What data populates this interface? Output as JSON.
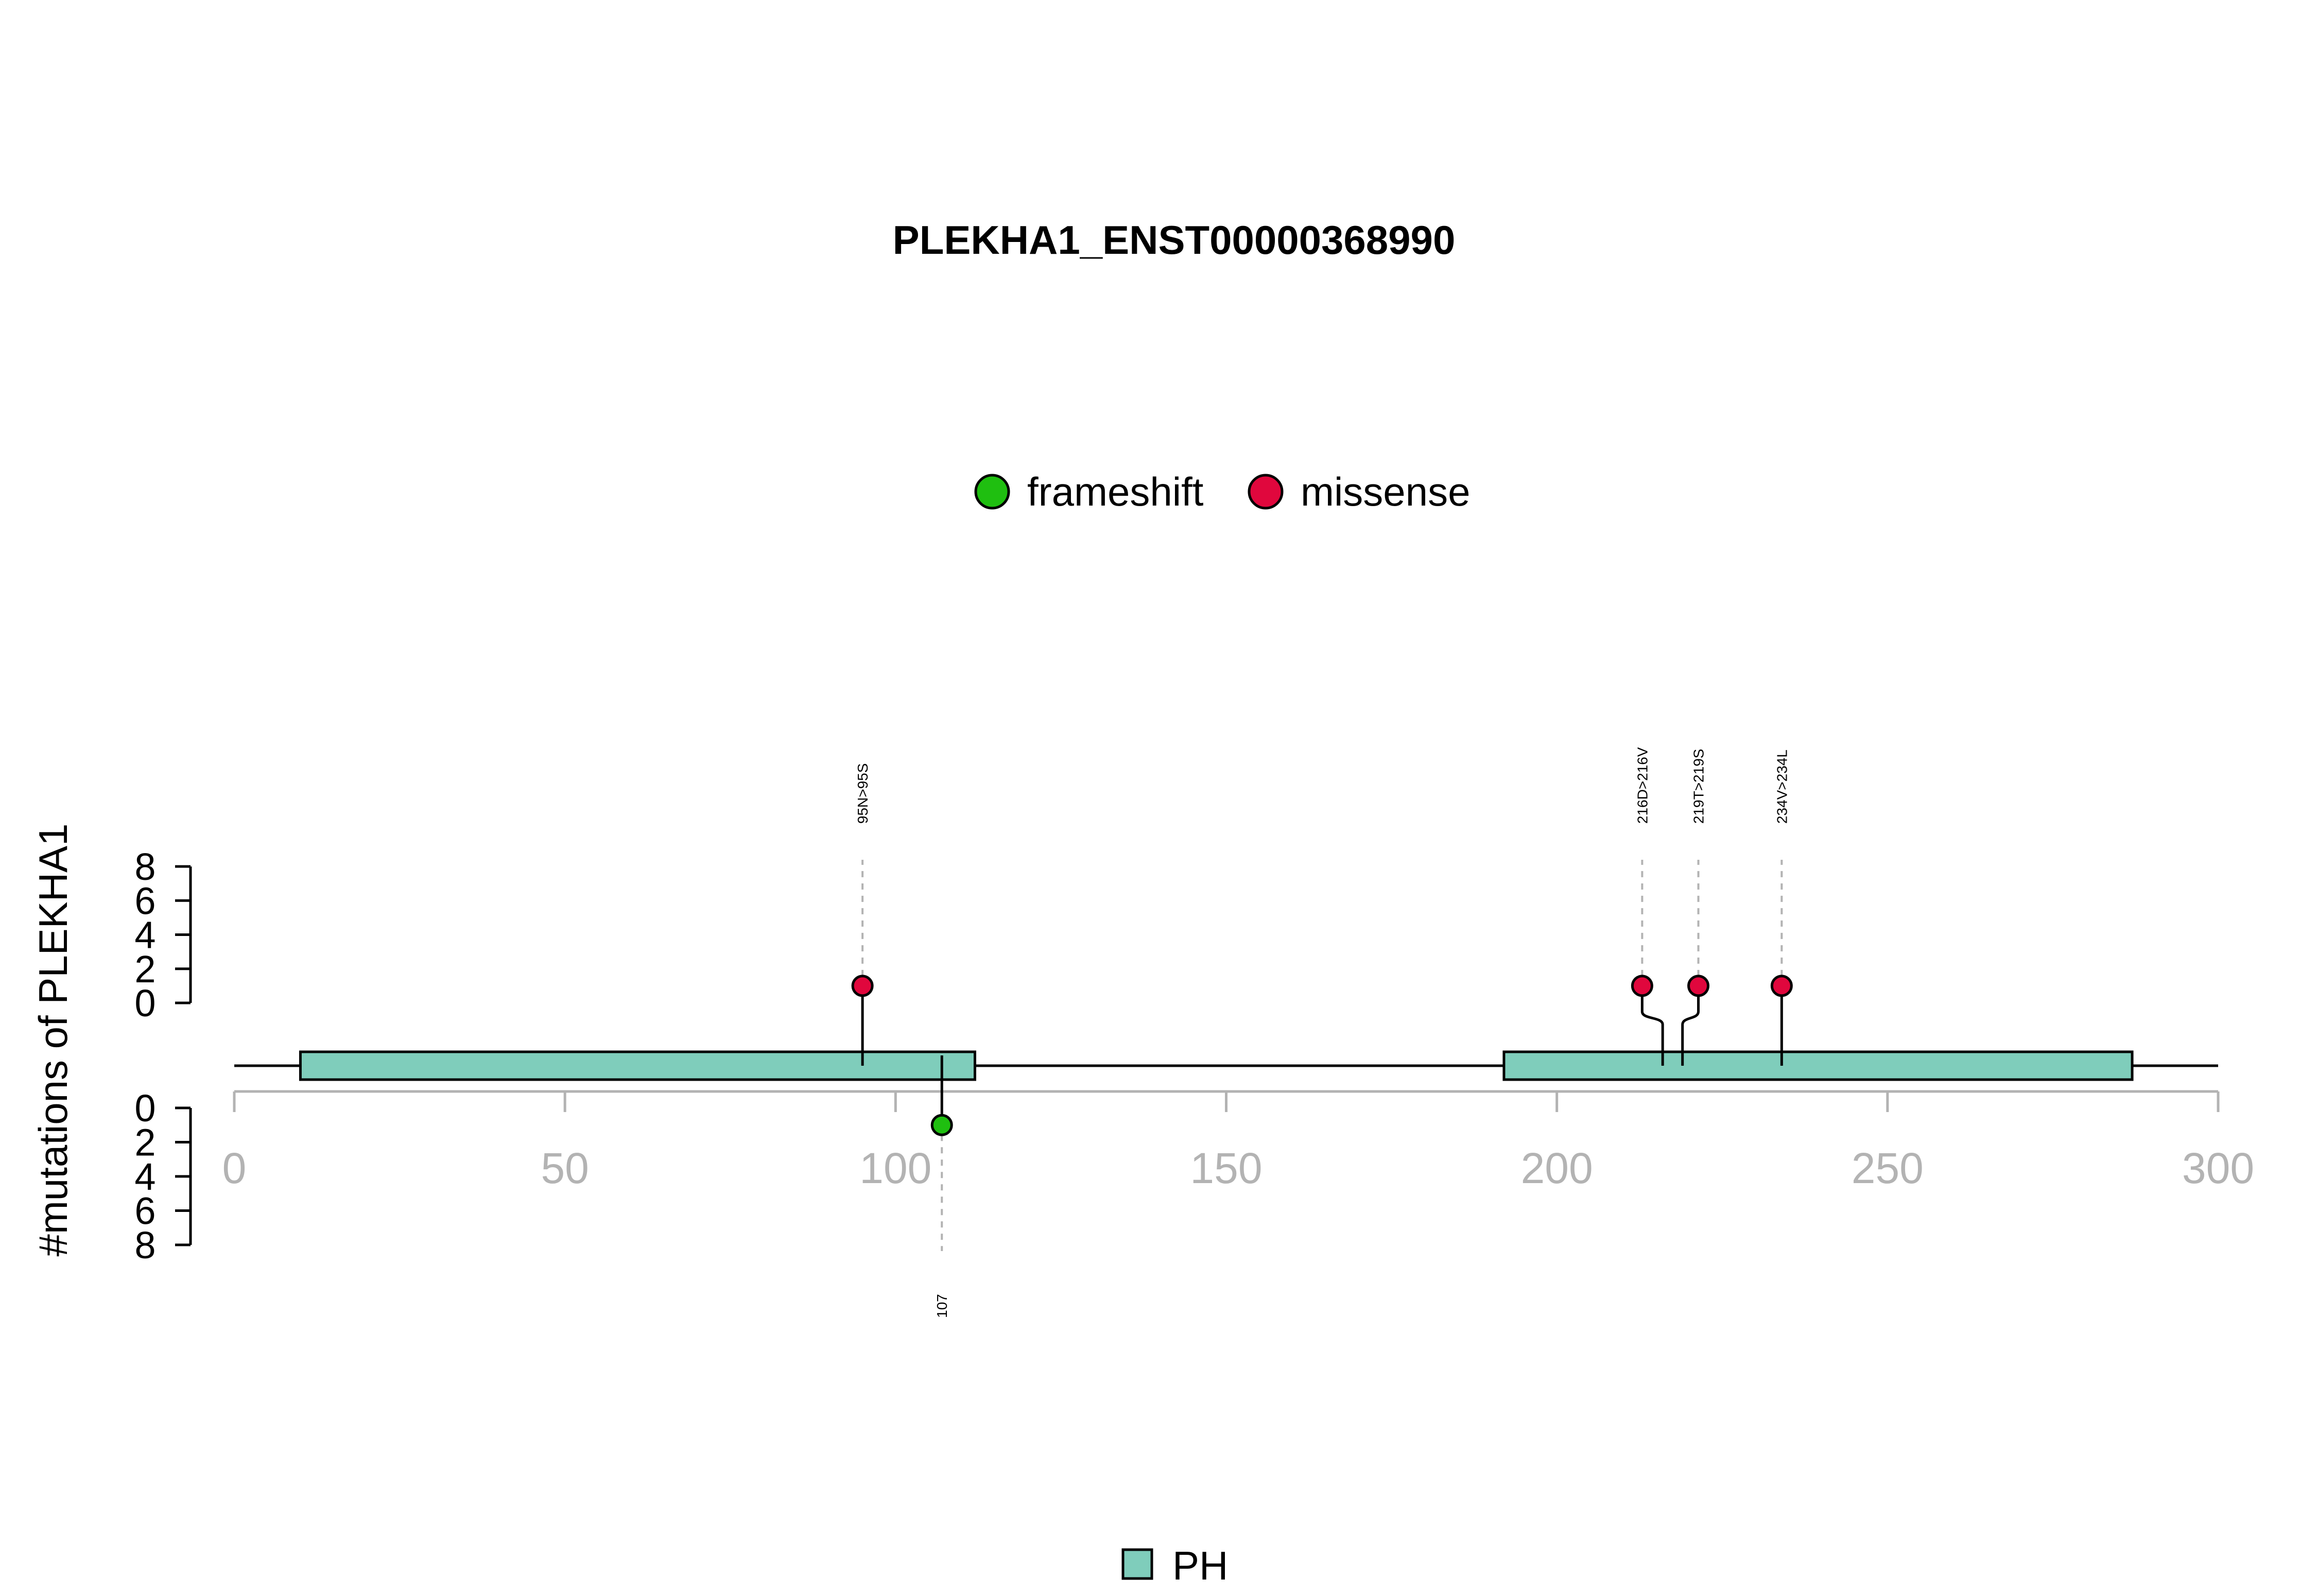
{
  "chart_data": {
    "type": "lollipop",
    "title": "PLEKHA1_ENST00000368990",
    "ylabel": "#mutations of PLEKHA1",
    "xlim": [
      0,
      300
    ],
    "x_ticks": [
      0,
      50,
      100,
      150,
      200,
      250,
      300
    ],
    "y_ticks_upper": [
      0,
      2,
      4,
      6,
      8
    ],
    "y_ticks_lower": [
      0,
      2,
      4,
      6,
      8
    ],
    "y_tick_labels": [
      "0",
      "2",
      "4",
      "6",
      "8"
    ],
    "x_tick_labels": [
      "0",
      "50",
      "100",
      "150",
      "200",
      "250",
      "300"
    ],
    "ylim": [
      0,
      8
    ],
    "legend_mutation_types": [
      {
        "name": "frameshift",
        "color": "#1fbf10"
      },
      {
        "name": "missense",
        "color": "#e0073d"
      }
    ],
    "legend_domains": [
      {
        "name": "PH",
        "color": "#7fcdbb"
      }
    ],
    "domains": [
      {
        "name": "PH",
        "start": 10,
        "end": 112,
        "color": "#7fcdbb"
      },
      {
        "name": "PH",
        "start": 192,
        "end": 287,
        "color": "#7fcdbb"
      }
    ],
    "mutations_upper": [
      {
        "position": 95,
        "count": 1,
        "type": "missense",
        "label": "95N>95S",
        "color": "#e0073d"
      },
      {
        "position": 216,
        "count": 1,
        "type": "missense",
        "label": "216D>216V",
        "color": "#e0073d"
      },
      {
        "position": 219,
        "count": 1,
        "type": "missense",
        "label": "219T>219S",
        "color": "#e0073d"
      },
      {
        "position": 234,
        "count": 1,
        "type": "missense",
        "label": "234V>234L",
        "color": "#e0073d"
      }
    ],
    "mutations_lower": [
      {
        "position": 107,
        "count": 1,
        "type": "frameshift",
        "label": "107",
        "color": "#1fbf10"
      }
    ],
    "colors": {
      "backbone": "#000000",
      "axis_gray": "#b3b3b3",
      "guide_gray": "#b3b3b3",
      "domain_fill": "#7fcdbb"
    }
  }
}
